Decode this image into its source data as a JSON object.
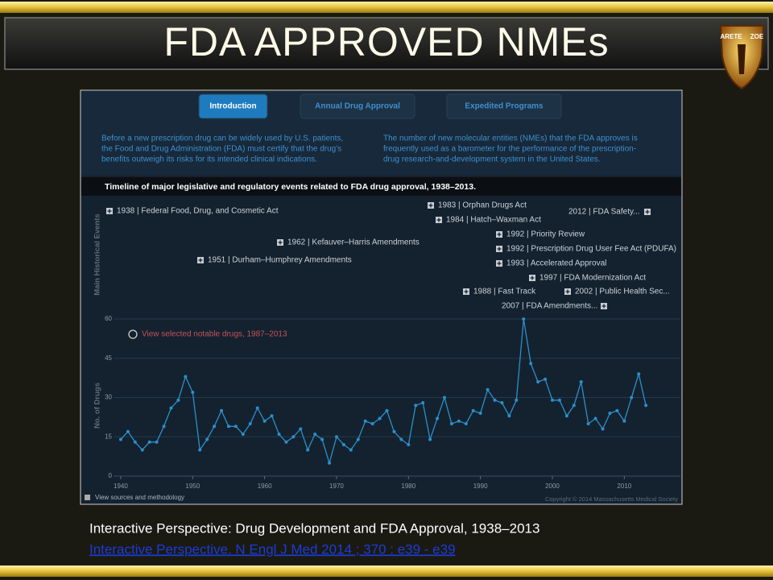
{
  "title": "FDA APPROVED NMEs",
  "logo": [
    "ARETE",
    "ZOE"
  ],
  "tabs": [
    "Introduction",
    "Annual Drug Approval",
    "Expedited Programs"
  ],
  "intro_left": [
    "Before a new prescription drug can be widely used by U.S. patients,",
    "the Food and Drug Administration (FDA) must certify that the drug's",
    "benefits outweigh its risks for its intended clinical indications."
  ],
  "intro_right": [
    "The number of new molecular entities (NMEs) that the FDA approves is",
    "frequently used as a barometer for the performance of the prescription-",
    "drug research-and-development system in the United States."
  ],
  "timeline_title": "Timeline of major legislative and regulatory events related to FDA drug approval, 1938–2013.",
  "events_axis_label": "Main Historical Events",
  "events": [
    "1938 | Federal Food, Drug, and Cosmetic Act",
    "1951 | Durham–Humphrey Amendments",
    "1962 | Kefauver–Harris Amendments",
    "1983 | Orphan Drugs Act",
    "1984 | Hatch–Waxman Act",
    "1988 | Fast Track",
    "1992 | Priority Review",
    "1992 | Prescription Drug User Fee Act (PDUFA)",
    "1993  |  Accelerated Approval",
    "1997 | FDA Modernization Act",
    "2002 | Public Health Sec...",
    "2007 | FDA Amendments...",
    "2012 | FDA Safety..."
  ],
  "chart_data": {
    "type": "line",
    "y_label": "No. of Drugs",
    "legend_text": "View selected notable drugs, 1987–2013",
    "x": [
      1940,
      1941,
      1942,
      1943,
      1944,
      1945,
      1946,
      1947,
      1948,
      1949,
      1950,
      1951,
      1952,
      1953,
      1954,
      1955,
      1956,
      1957,
      1958,
      1959,
      1960,
      1961,
      1962,
      1963,
      1964,
      1965,
      1966,
      1967,
      1968,
      1969,
      1970,
      1971,
      1972,
      1973,
      1974,
      1975,
      1976,
      1977,
      1978,
      1979,
      1980,
      1981,
      1982,
      1983,
      1984,
      1985,
      1986,
      1987,
      1988,
      1989,
      1990,
      1991,
      1992,
      1993,
      1994,
      1995,
      1996,
      1997,
      1998,
      1999,
      2000,
      2001,
      2002,
      2003,
      2004,
      2005,
      2006,
      2007,
      2008,
      2009,
      2010,
      2011,
      2012,
      2013
    ],
    "series": [
      {
        "color": "#2b8fcb",
        "values": [
          14,
          17,
          13,
          10,
          13,
          13,
          19,
          26,
          29,
          38,
          32,
          10,
          14,
          19,
          25,
          19,
          19,
          16,
          20,
          26,
          21,
          23,
          16,
          13,
          15,
          18,
          10,
          16,
          14,
          5,
          15,
          12,
          10,
          14,
          21,
          20,
          22,
          25,
          17,
          14,
          12,
          27,
          28,
          14,
          22,
          30,
          20,
          21,
          20,
          25,
          24,
          33,
          29,
          28,
          23,
          29,
          60,
          43,
          36,
          37,
          29,
          29,
          23,
          27,
          36,
          20,
          22,
          18,
          24,
          25,
          21,
          30,
          39,
          27
        ]
      }
    ],
    "xlim": [
      1939,
      2015
    ],
    "xticks": [
      1940,
      1950,
      1960,
      1970,
      1980,
      1990,
      2000,
      2010
    ],
    "ylim": [
      0,
      60
    ],
    "yticks": [
      0,
      15,
      30,
      45,
      60
    ],
    "grid": true
  },
  "sources_link": "View sources and methodology",
  "copyright": "Copyright © 2014 Massachusetts Medical Society",
  "caption": "Interactive Perspective: Drug Development and FDA Approval, 1938–2013",
  "link": "Interactive Perspective. N Engl J Med 2014 ; 370 : e39 - e39"
}
